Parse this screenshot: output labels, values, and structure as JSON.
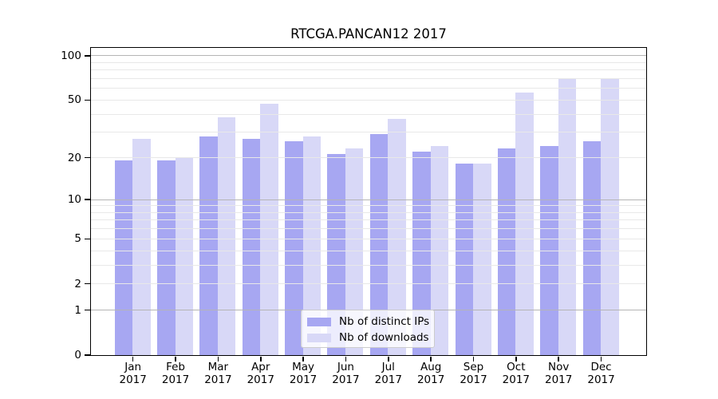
{
  "title": "RTCGA.PANCAN12 2017",
  "chart_data": {
    "type": "bar",
    "title": "RTCGA.PANCAN12 2017",
    "categories": [
      "Jan 2017",
      "Feb 2017",
      "Mar 2017",
      "Apr 2017",
      "May 2017",
      "Jun 2017",
      "Jul 2017",
      "Aug 2017",
      "Sep 2017",
      "Oct 2017",
      "Nov 2017",
      "Dec 2017"
    ],
    "series": [
      {
        "name": "Nb of distinct IPs",
        "color": "#a7a7f2",
        "values": [
          19,
          19,
          28,
          27,
          26,
          21,
          29,
          22,
          18,
          23,
          24,
          26
        ]
      },
      {
        "name": "Nb of downloads",
        "color": "#d8d8f7",
        "values": [
          27,
          20,
          38,
          47,
          28,
          23,
          37,
          24,
          18,
          56,
          69,
          69
        ]
      }
    ],
    "yscale": "log1p",
    "ylim": [
      0,
      113
    ],
    "ytick_values": [
      0,
      1,
      2,
      5,
      10,
      20,
      50,
      100
    ],
    "major_gridlines": [
      1,
      10,
      100
    ],
    "minor_gridlines": [
      2,
      3,
      4,
      5,
      6,
      7,
      8,
      9,
      20,
      30,
      40,
      50,
      60,
      70,
      80,
      90
    ],
    "grid": "on",
    "xlabel": "",
    "ylabel": "",
    "legend_position": "inside-bottom-center"
  },
  "colors": {
    "background": "#ffffff",
    "bar_distinct_ips": "#a7a7f2",
    "bar_downloads": "#d8d8f7",
    "grid_major": "#b5b5b5",
    "grid_minor": "#e8e8e8",
    "axis_spine": "#000000",
    "legend_border": "#cccccc"
  }
}
